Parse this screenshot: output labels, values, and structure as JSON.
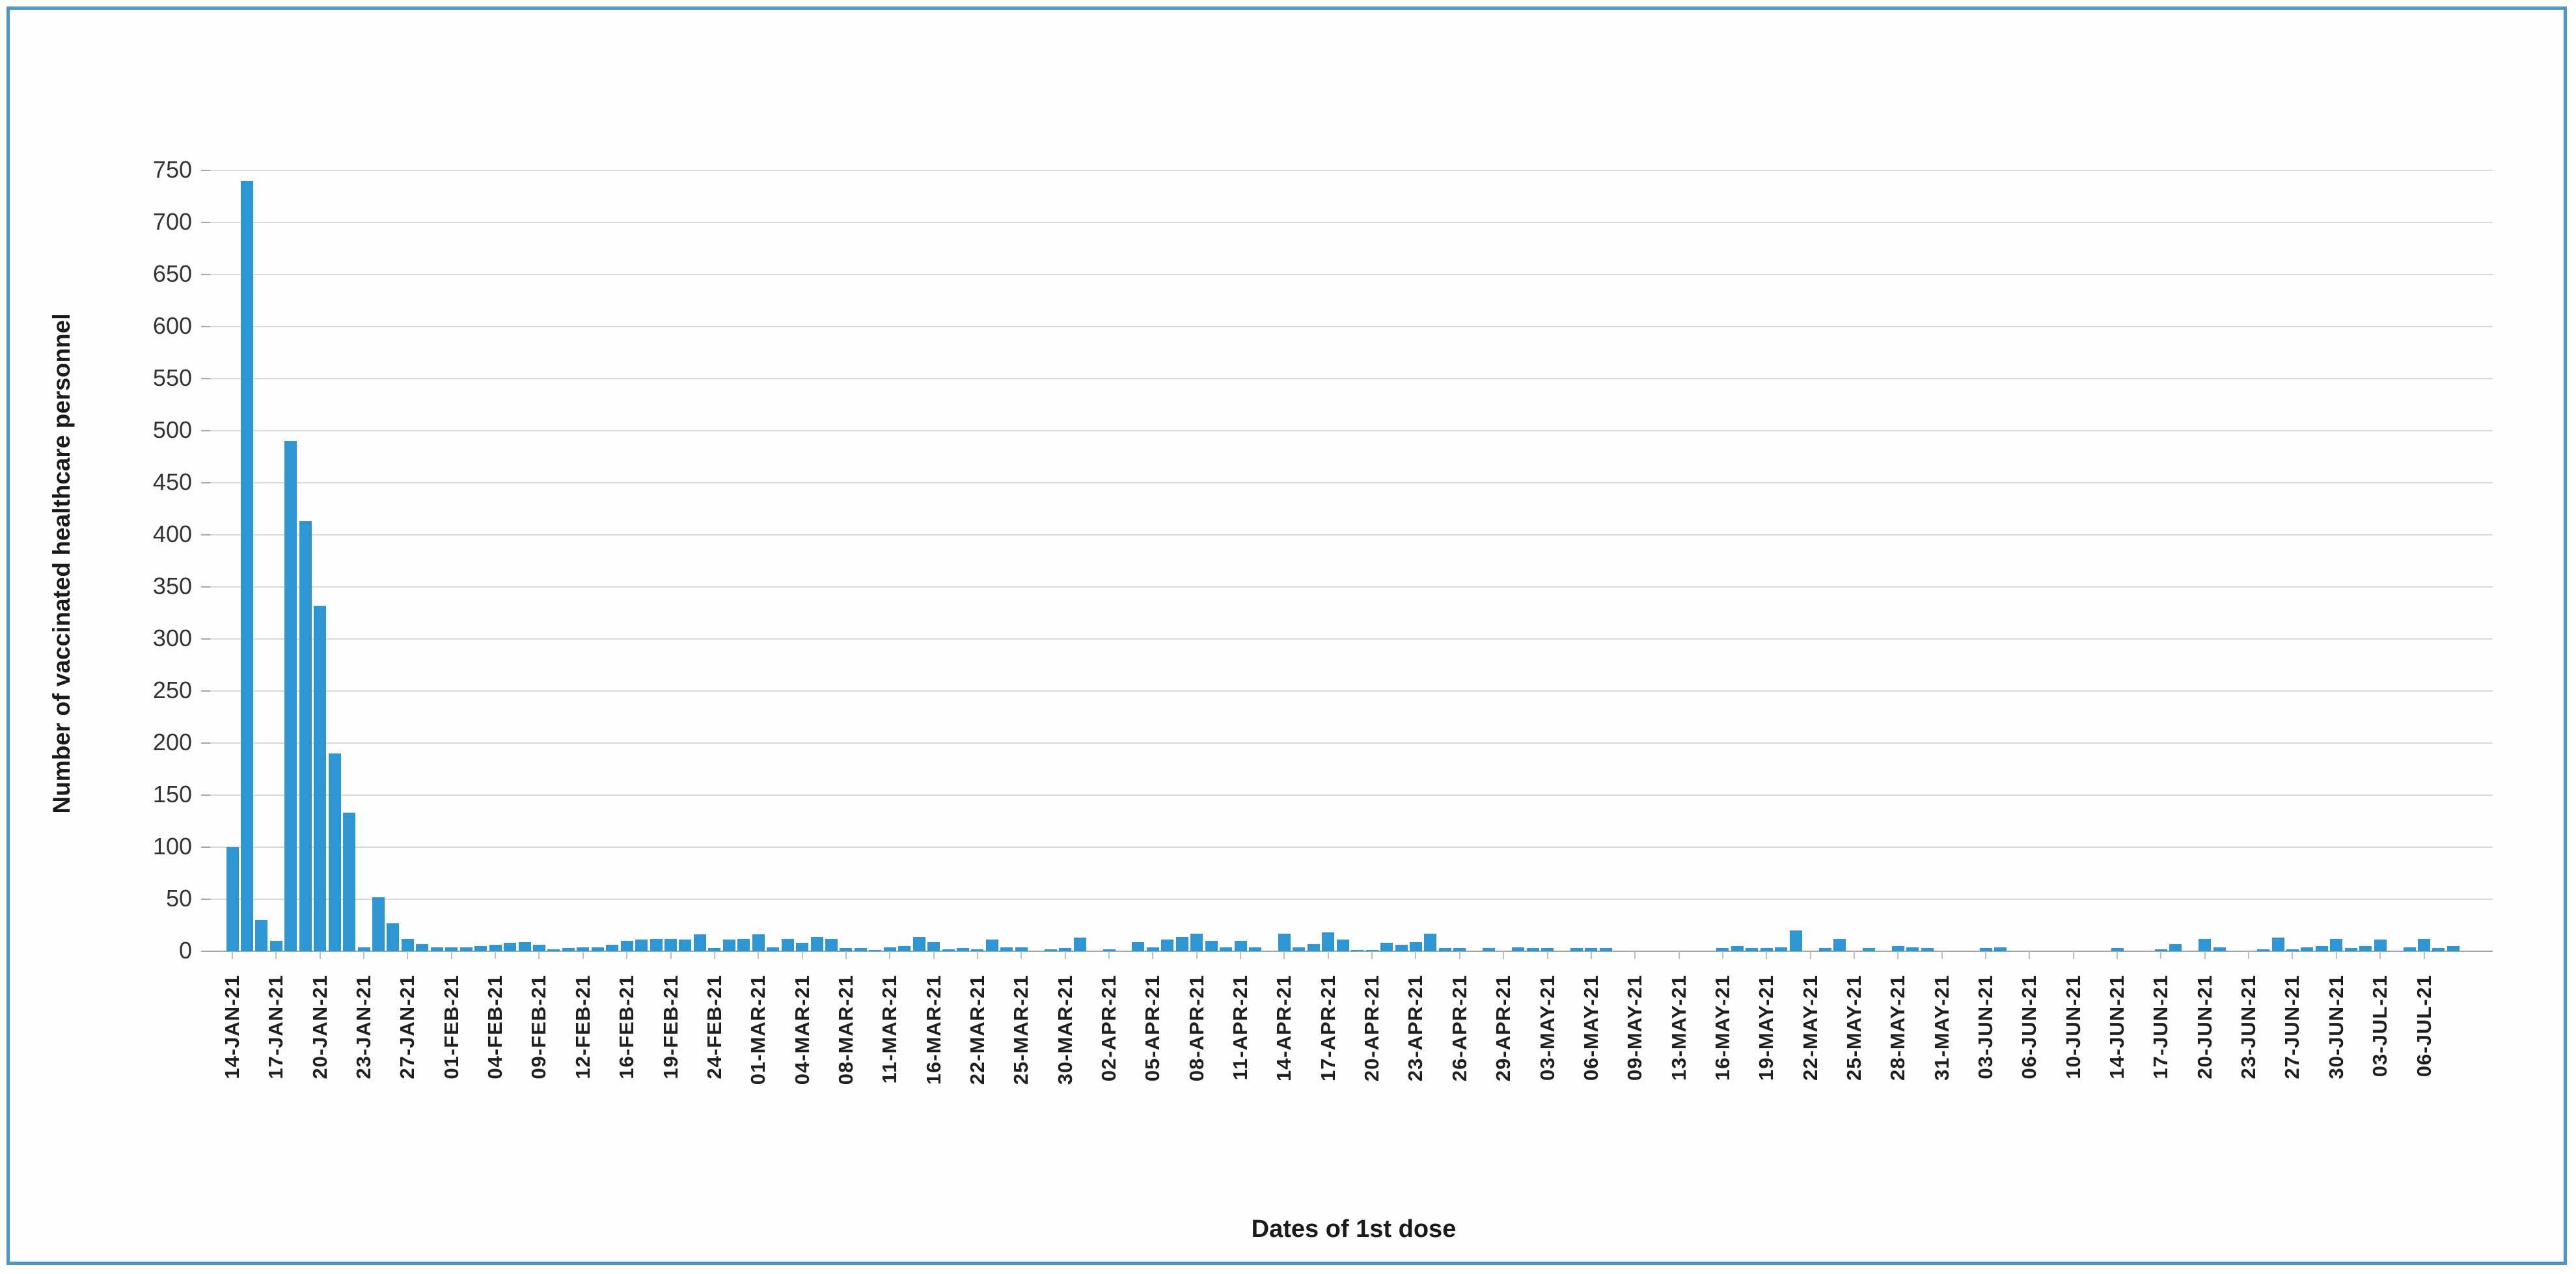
{
  "frame": {
    "border_color": "#4C96CE",
    "background": "#fefefe"
  },
  "chart_data": {
    "type": "bar",
    "title": "",
    "xlabel": "Dates of 1st dose",
    "ylabel": "Number of vaccinated healthcare personnel",
    "ylim": [
      0,
      750
    ],
    "ytick_step": 50,
    "ytick_labels": [
      "0",
      "50",
      "100",
      "150",
      "200",
      "250",
      "300",
      "350",
      "400",
      "450",
      "500",
      "550",
      "600",
      "650",
      "700",
      "750"
    ],
    "grid": true,
    "legend_position": "none",
    "bar_color": "#2E96D2",
    "gridline_color": "#d9d9d9",
    "axis_line_color": "#a6a6a6",
    "label_interval": 3,
    "x_tick_labels": [
      "14-JAN-21",
      "17-JAN-21",
      "20-JAN-21",
      "23-JAN-21",
      "27-JAN-21",
      "01-FEB-21",
      "04-FEB-21",
      "09-FEB-21",
      "12-FEB-21",
      "16-FEB-21",
      "19-FEB-21",
      "24-FEB-21",
      "01-MAR-21",
      "04-MAR-21",
      "08-MAR-21",
      "11-MAR-21",
      "16-MAR-21",
      "22-MAR-21",
      "25-MAR-21",
      "30-MAR-21",
      "02-APR-21",
      "05-APR-21",
      "08-APR-21",
      "11-APR-21",
      "14-APR-21",
      "17-APR-21",
      "20-APR-21",
      "23-APR-21",
      "26-APR-21",
      "29-APR-21",
      "03-MAY-21",
      "06-MAY-21",
      "09-MAY-21",
      "13-MAY-21",
      "16-MAY-21",
      "19-MAY-21",
      "22-MAY-21",
      "25-MAY-21",
      "28-MAY-21",
      "31-MAY-21",
      "03-JUN-21",
      "06-JUN-21",
      "10-JUN-21",
      "14-JUN-21",
      "17-JUN-21",
      "20-JUN-21",
      "23-JUN-21",
      "27-JUN-21",
      "30-JUN-21",
      "03-JUL-21",
      "06-JUL-21"
    ],
    "values": [
      100,
      740,
      30,
      10,
      490,
      413,
      332,
      190,
      133,
      4,
      52,
      27,
      12,
      7,
      4,
      4,
      4,
      5,
      6,
      8,
      9,
      6,
      2,
      3,
      4,
      4,
      6,
      10,
      11,
      12,
      12,
      11,
      16,
      3,
      11,
      12,
      16,
      4,
      12,
      8,
      14,
      12,
      3,
      3,
      1,
      4,
      5,
      14,
      9,
      2,
      3,
      2,
      11,
      4,
      4,
      0,
      2,
      3,
      13,
      0,
      2,
      0,
      9,
      4,
      11,
      14,
      17,
      10,
      4,
      10,
      4,
      0,
      17,
      4,
      7,
      18,
      11,
      1,
      1,
      8,
      6,
      9,
      17,
      3,
      3,
      0,
      3,
      0,
      4,
      3,
      3,
      0,
      3,
      3,
      3,
      0,
      0,
      0,
      0,
      0,
      0,
      0,
      3,
      5,
      3,
      3,
      4,
      20,
      0,
      3,
      12,
      0,
      3,
      0,
      5,
      4,
      3,
      0,
      0,
      0,
      3,
      4,
      0,
      0,
      0,
      0,
      0,
      0,
      0,
      3,
      0,
      0,
      2,
      7,
      0,
      12,
      4,
      0,
      0,
      2,
      13,
      2,
      4,
      5,
      12,
      3,
      5,
      11,
      0,
      4,
      12,
      3,
      5
    ]
  }
}
